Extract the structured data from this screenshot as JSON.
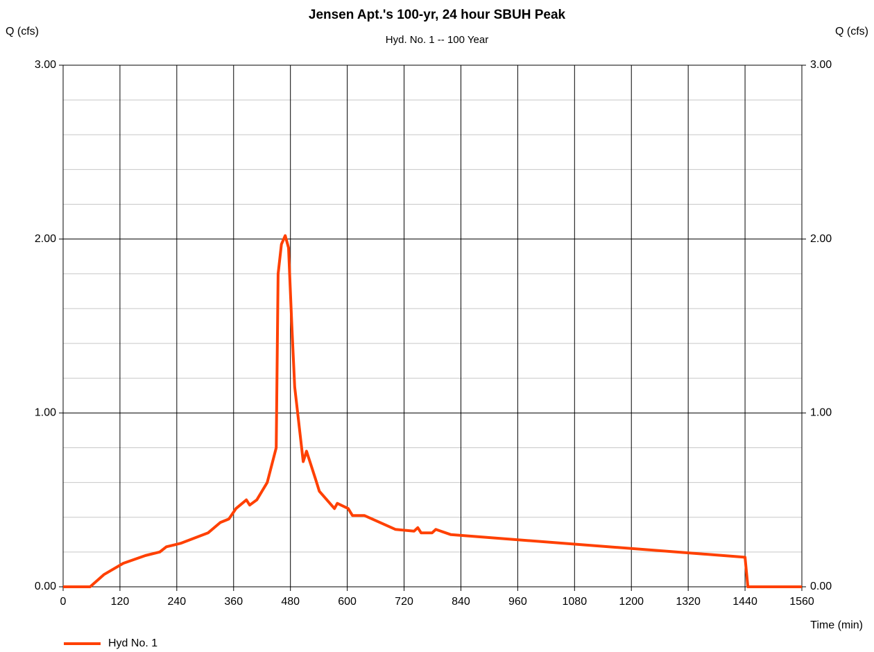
{
  "chart_data": {
    "type": "line",
    "title": "Jensen Apt.'s 100-yr, 24 hour SBUH Peak",
    "subtitle": "Hyd. No. 1 -- 100 Year",
    "ylabel": "Q (cfs)",
    "y2label": "Q (cfs)",
    "xlabel": "Time (min)",
    "xlim": [
      0,
      1560
    ],
    "xticks": [
      0,
      120,
      240,
      360,
      480,
      600,
      720,
      840,
      960,
      1080,
      1200,
      1320,
      1440,
      1560
    ],
    "ylim": [
      0,
      3
    ],
    "yticks": [
      {
        "value": 0,
        "label": "0.00"
      },
      {
        "value": 1,
        "label": "1.00"
      },
      {
        "value": 2,
        "label": "2.00"
      },
      {
        "value": 3,
        "label": "3.00"
      }
    ],
    "y2lim": [
      0,
      3
    ],
    "y2ticks": [
      {
        "value": 0,
        "label": "0.00"
      },
      {
        "value": 1,
        "label": "1.00"
      },
      {
        "value": 2,
        "label": "2.00"
      },
      {
        "value": 3,
        "label": "3.00"
      }
    ],
    "y_minor_ticks": [
      0.2,
      0.4,
      0.6,
      0.8,
      1.2,
      1.4,
      1.6,
      1.8,
      2.2,
      2.4,
      2.6,
      2.8
    ],
    "grid": true,
    "legend": "bottom-left",
    "x": [
      0,
      57,
      86,
      127,
      174,
      204,
      218,
      248,
      306,
      332,
      350,
      365,
      387,
      394,
      409,
      431,
      450,
      454,
      461,
      469,
      476,
      483,
      489,
      507,
      514,
      533,
      541,
      573,
      579,
      602,
      611,
      636,
      702,
      741,
      749,
      756,
      779,
      787,
      819,
      1440,
      1446,
      1560
    ],
    "series": [
      {
        "name": "Hyd No. 1",
        "color": "#ff4000",
        "values": [
          0,
          0,
          0.07,
          0.135,
          0.18,
          0.2,
          0.23,
          0.25,
          0.31,
          0.37,
          0.39,
          0.45,
          0.5,
          0.47,
          0.5,
          0.6,
          0.8,
          1.8,
          1.97,
          2.02,
          1.95,
          1.5,
          1.15,
          0.72,
          0.78,
          0.62,
          0.55,
          0.45,
          0.48,
          0.45,
          0.41,
          0.41,
          0.33,
          0.32,
          0.34,
          0.31,
          0.31,
          0.33,
          0.3,
          0.17,
          0,
          0
        ]
      }
    ]
  }
}
